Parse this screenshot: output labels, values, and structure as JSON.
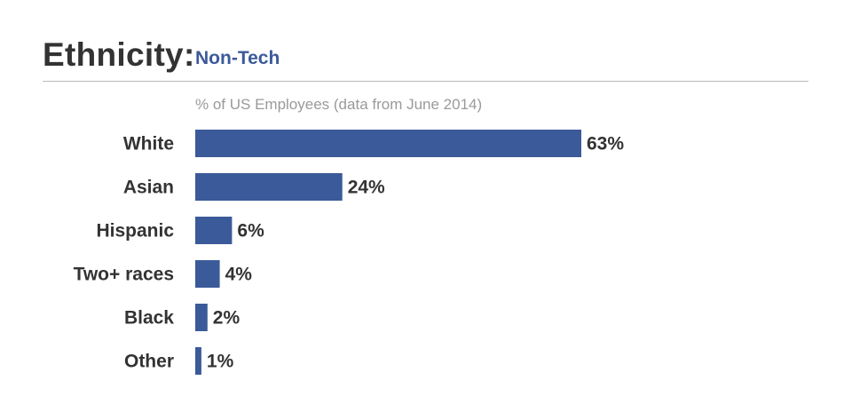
{
  "header": {
    "title": "Ethnicity:",
    "subtitle": "Non-Tech"
  },
  "colors": {
    "bar": "#3b5a9a",
    "subtitle": "#3b5a9a",
    "text": "#333333",
    "caption": "#9a9a9a"
  },
  "chart_data": {
    "type": "bar",
    "orientation": "horizontal",
    "title": "Ethnicity: Non-Tech",
    "caption": "% of US Employees (data from June 2014)",
    "categories": [
      "White",
      "Asian",
      "Hispanic",
      "Two+ races",
      "Black",
      "Other"
    ],
    "values": [
      63,
      24,
      6,
      4,
      2,
      1
    ],
    "value_labels": [
      "63%",
      "24%",
      "6%",
      "4%",
      "2%",
      "1%"
    ],
    "xlim": [
      0,
      63
    ],
    "unit": "%",
    "grid": false,
    "legend": "none"
  }
}
